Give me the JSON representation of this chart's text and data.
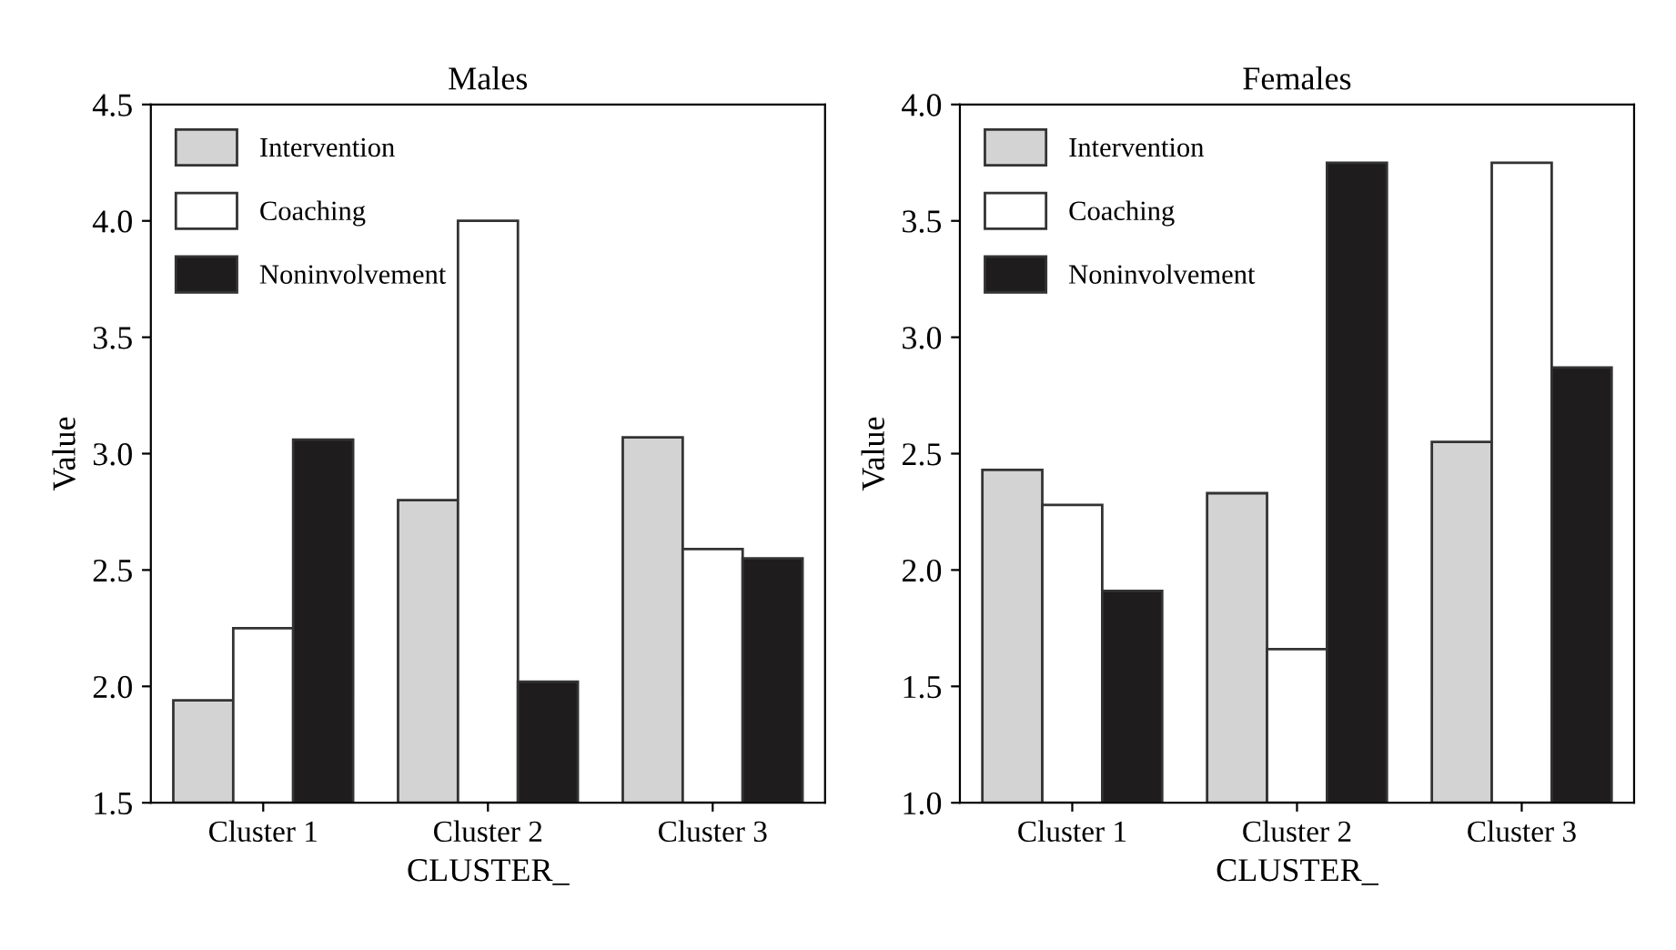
{
  "chart_data": [
    {
      "type": "bar",
      "title": "Males",
      "xlabel": "CLUSTER_",
      "ylabel": "Value",
      "categories": [
        "Cluster 1",
        "Cluster 2",
        "Cluster 3"
      ],
      "ylim": [
        1.5,
        4.5
      ],
      "yticks": [
        {
          "value": 1.5,
          "label": "1.5"
        },
        {
          "value": 2.0,
          "label": "2.0"
        },
        {
          "value": 2.5,
          "label": "2.5"
        },
        {
          "value": 3.0,
          "label": "3.0"
        },
        {
          "value": 3.5,
          "label": "3.5"
        },
        {
          "value": 4.0,
          "label": "4.0"
        },
        {
          "value": 4.5,
          "label": "4.5"
        }
      ],
      "legend": "top left",
      "grid": false,
      "series": [
        {
          "name": "Intervention",
          "color": "#d3d3d3",
          "values": [
            1.94,
            2.8,
            3.07
          ]
        },
        {
          "name": "Coaching",
          "color": "#ffffff",
          "values": [
            2.25,
            4.0,
            2.59
          ]
        },
        {
          "name": "Noninvolvement",
          "color": "#1e1c1d",
          "values": [
            3.06,
            2.02,
            2.55
          ]
        }
      ]
    },
    {
      "type": "bar",
      "title": "Females",
      "xlabel": "CLUSTER_",
      "ylabel": "Value",
      "categories": [
        "Cluster 1",
        "Cluster 2",
        "Cluster 3"
      ],
      "ylim": [
        1.0,
        4.0
      ],
      "yticks": [
        {
          "value": 1.0,
          "label": "1.0"
        },
        {
          "value": 1.5,
          "label": "1.5"
        },
        {
          "value": 2.0,
          "label": "2.0"
        },
        {
          "value": 2.5,
          "label": "2.5"
        },
        {
          "value": 3.0,
          "label": "3.0"
        },
        {
          "value": 3.5,
          "label": "3.5"
        },
        {
          "value": 4.0,
          "label": "4.0"
        }
      ],
      "legend": "top left",
      "grid": false,
      "series": [
        {
          "name": "Intervention",
          "color": "#d3d3d3",
          "values": [
            2.43,
            2.33,
            2.55
          ]
        },
        {
          "name": "Coaching",
          "color": "#ffffff",
          "values": [
            2.28,
            1.66,
            3.75
          ]
        },
        {
          "name": "Noninvolvement",
          "color": "#1e1c1d",
          "values": [
            1.91,
            3.75,
            2.87
          ]
        }
      ]
    }
  ]
}
